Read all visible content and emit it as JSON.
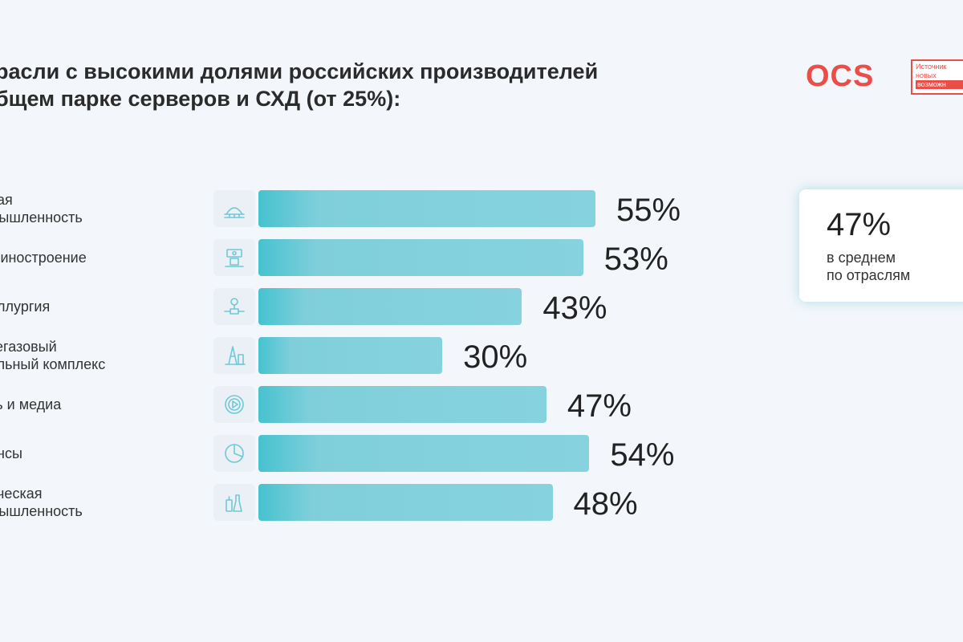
{
  "title": {
    "line1": "расли с высокими долями российских производителей",
    "line2": "бщем парке серверов и СХД (от 25%):"
  },
  "logo": {
    "text": "OCS",
    "tagline": [
      "Источник",
      "новых",
      "возможн"
    ]
  },
  "average": {
    "value": "47%",
    "label_line1": "в среднем",
    "label_line2": "по отраслям"
  },
  "colors": {
    "bar": "#86d3df",
    "bar_accent": "#47c2cf",
    "brand": "#e94f48"
  },
  "chart_data": {
    "type": "bar",
    "orientation": "horizontal",
    "categories": [
      "ная мышленность",
      "шиностроение",
      "аллургия",
      "тегазовый ольный комплекс",
      "зь и медиа",
      "ансы",
      "ическая мышленность"
    ],
    "values": [
      55,
      53,
      43,
      30,
      47,
      54,
      48
    ],
    "value_labels": [
      "55%",
      "53%",
      "43%",
      "30%",
      "47%",
      "54%",
      "48%"
    ],
    "xlim": [
      0,
      55
    ],
    "grid": false
  },
  "rows": [
    {
      "label_lines": [
        "ная",
        "мышленность"
      ],
      "icon": "dome-building-icon",
      "value_label": "55%"
    },
    {
      "label_lines": [
        "шиностроение"
      ],
      "icon": "machine-icon",
      "value_label": "53%"
    },
    {
      "label_lines": [
        "аллургия"
      ],
      "icon": "valve-pipes-icon",
      "value_label": "43%"
    },
    {
      "label_lines": [
        "тегазовый",
        "ольный комплекс"
      ],
      "icon": "oil-rig-icon",
      "value_label": "30%"
    },
    {
      "label_lines": [
        "зь и медиа"
      ],
      "icon": "play-circle-icon",
      "value_label": "47%"
    },
    {
      "label_lines": [
        "ансы"
      ],
      "icon": "pie-chart-icon",
      "value_label": "54%"
    },
    {
      "label_lines": [
        "ическая",
        "мышленность"
      ],
      "icon": "flask-bottles-icon",
      "value_label": "48%"
    }
  ]
}
